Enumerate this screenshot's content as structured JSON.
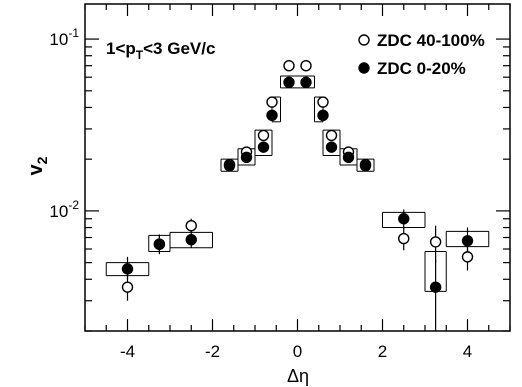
{
  "chart_data": {
    "type": "scatter",
    "annotation": {
      "pre": "1<p",
      "sub": "T",
      "post": "<3 GeV/c"
    },
    "xlabel": "Δη",
    "ylabel": {
      "main": "v",
      "sub": "2"
    },
    "xlim": [
      -5.0,
      5.0
    ],
    "ylim": [
      0.002,
      0.16
    ],
    "yscale": "log",
    "xticks": [
      -4,
      -2,
      0,
      2,
      4
    ],
    "xtick_labels": [
      "-4",
      "-2",
      "0",
      "2",
      "4"
    ],
    "yticks": [
      0.01,
      0.1
    ],
    "ytick_labels": [
      {
        "base": "10",
        "exp": "-2"
      },
      {
        "base": "10",
        "exp": "-1"
      }
    ],
    "legend_position": "top-right",
    "series": [
      {
        "name": "ZDC 40-100%",
        "marker": "open-circle",
        "points": [
          {
            "x": -4.0,
            "y": 0.0036,
            "err_lo": 0.003,
            "err_hi": 0.0043
          },
          {
            "x": -3.25,
            "y": 0.0064,
            "err_lo": 0.0057,
            "err_hi": 0.0072
          },
          {
            "x": -2.5,
            "y": 0.0082,
            "err_lo": 0.0075,
            "err_hi": 0.009
          },
          {
            "x": -1.6,
            "y": 0.0186,
            "err_lo": 0.0175,
            "err_hi": 0.0198
          },
          {
            "x": -1.2,
            "y": 0.022,
            "err_lo": 0.0212,
            "err_hi": 0.0228
          },
          {
            "x": -0.8,
            "y": 0.0275,
            "err_lo": 0.0266,
            "err_hi": 0.0284
          },
          {
            "x": -0.6,
            "y": 0.043,
            "err_lo": 0.0418,
            "err_hi": 0.0442
          },
          {
            "x": -0.2,
            "y": 0.07,
            "err_lo": 0.0685,
            "err_hi": 0.0715
          },
          {
            "x": 0.2,
            "y": 0.07,
            "err_lo": 0.0685,
            "err_hi": 0.0715
          },
          {
            "x": 0.6,
            "y": 0.043,
            "err_lo": 0.0418,
            "err_hi": 0.0442
          },
          {
            "x": 0.8,
            "y": 0.0275,
            "err_lo": 0.0266,
            "err_hi": 0.0284
          },
          {
            "x": 1.2,
            "y": 0.022,
            "err_lo": 0.0212,
            "err_hi": 0.0228
          },
          {
            "x": 1.6,
            "y": 0.0186,
            "err_lo": 0.0175,
            "err_hi": 0.0198
          },
          {
            "x": 2.5,
            "y": 0.0069,
            "err_lo": 0.0059,
            "err_hi": 0.008
          },
          {
            "x": 3.25,
            "y": 0.0066,
            "err_lo": 0.005,
            "err_hi": 0.0082
          },
          {
            "x": 4.0,
            "y": 0.0054,
            "err_lo": 0.0045,
            "err_hi": 0.0063
          }
        ],
        "systematic_bands": [
          {
            "x0": -4.5,
            "x1": -3.5,
            "y": 0.005
          },
          {
            "x0": -3.5,
            "x1": -3.0,
            "y": 0.0072
          },
          {
            "x0": -3.0,
            "x1": -2.0,
            "y": 0.0075
          },
          {
            "x0": -1.8,
            "x1": -1.4,
            "y": 0.02
          },
          {
            "x0": -1.4,
            "x1": -1.0,
            "y": 0.023
          },
          {
            "x0": -1.0,
            "x1": -0.6,
            "y": 0.0295
          },
          {
            "x0": -0.6,
            "x1": -0.4,
            "y": 0.046
          },
          {
            "x0": -0.4,
            "x1": 0.4,
            "y": 0.061
          },
          {
            "x0": 0.4,
            "x1": 0.6,
            "y": 0.046
          },
          {
            "x0": 0.6,
            "x1": 1.0,
            "y": 0.0295
          },
          {
            "x0": 1.0,
            "x1": 1.4,
            "y": 0.023
          },
          {
            "x0": 1.4,
            "x1": 1.8,
            "y": 0.02
          },
          {
            "x0": 2.0,
            "x1": 3.0,
            "y": 0.0098
          },
          {
            "x0": 3.0,
            "x1": 3.5,
            "y": 0.0058
          },
          {
            "x0": 3.5,
            "x1": 4.5,
            "y": 0.0076
          }
        ]
      },
      {
        "name": "ZDC 0-20%",
        "marker": "filled-circle",
        "points": [
          {
            "x": -4.0,
            "y": 0.0046,
            "err_lo": 0.004,
            "err_hi": 0.0054
          },
          {
            "x": -3.25,
            "y": 0.0064,
            "err_lo": 0.0056,
            "err_hi": 0.0073
          },
          {
            "x": -2.5,
            "y": 0.0068,
            "err_lo": 0.0061,
            "err_hi": 0.0076
          },
          {
            "x": -1.6,
            "y": 0.0183,
            "err_lo": 0.0173,
            "err_hi": 0.0194
          },
          {
            "x": -1.2,
            "y": 0.0205,
            "err_lo": 0.0197,
            "err_hi": 0.0213
          },
          {
            "x": -0.8,
            "y": 0.0235,
            "err_lo": 0.0226,
            "err_hi": 0.0244
          },
          {
            "x": -0.6,
            "y": 0.036,
            "err_lo": 0.035,
            "err_hi": 0.037
          },
          {
            "x": -0.2,
            "y": 0.056,
            "err_lo": 0.0545,
            "err_hi": 0.0575
          },
          {
            "x": 0.2,
            "y": 0.056,
            "err_lo": 0.0545,
            "err_hi": 0.0575
          },
          {
            "x": 0.6,
            "y": 0.036,
            "err_lo": 0.035,
            "err_hi": 0.037
          },
          {
            "x": 0.8,
            "y": 0.0235,
            "err_lo": 0.0226,
            "err_hi": 0.0244
          },
          {
            "x": 1.2,
            "y": 0.0205,
            "err_lo": 0.0197,
            "err_hi": 0.0213
          },
          {
            "x": 1.6,
            "y": 0.0183,
            "err_lo": 0.0173,
            "err_hi": 0.0194
          },
          {
            "x": 2.5,
            "y": 0.009,
            "err_lo": 0.0079,
            "err_hi": 0.0102
          },
          {
            "x": 3.25,
            "y": 0.0036,
            "err_lo": 0.002,
            "err_hi": 0.0052
          },
          {
            "x": 4.0,
            "y": 0.0067,
            "err_lo": 0.0055,
            "err_hi": 0.008
          }
        ],
        "systematic_bands": [
          {
            "x0": -4.5,
            "x1": -3.5,
            "y": 0.0042
          },
          {
            "x0": -3.5,
            "x1": -3.0,
            "y": 0.0058
          },
          {
            "x0": -3.0,
            "x1": -2.0,
            "y": 0.0061
          },
          {
            "x0": -1.8,
            "x1": -1.4,
            "y": 0.017
          },
          {
            "x0": -1.4,
            "x1": -1.0,
            "y": 0.0185
          },
          {
            "x0": -1.0,
            "x1": -0.6,
            "y": 0.021
          },
          {
            "x0": -0.6,
            "x1": -0.4,
            "y": 0.033
          },
          {
            "x0": -0.4,
            "x1": 0.4,
            "y": 0.052
          },
          {
            "x0": 0.4,
            "x1": 0.6,
            "y": 0.033
          },
          {
            "x0": 0.6,
            "x1": 1.0,
            "y": 0.021
          },
          {
            "x0": 1.0,
            "x1": 1.4,
            "y": 0.0185
          },
          {
            "x0": 1.4,
            "x1": 1.8,
            "y": 0.017
          },
          {
            "x0": 2.0,
            "x1": 3.0,
            "y": 0.008
          },
          {
            "x0": 3.0,
            "x1": 3.5,
            "y": 0.0034
          },
          {
            "x0": 3.5,
            "x1": 4.5,
            "y": 0.0062
          }
        ]
      }
    ]
  }
}
